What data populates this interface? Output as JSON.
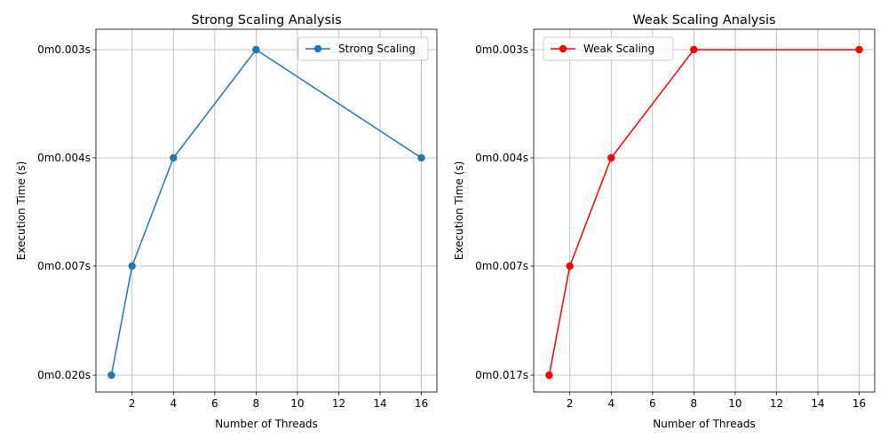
{
  "chart_data": [
    {
      "type": "line",
      "title": "Strong Scaling Analysis",
      "xlabel": "Number of Threads",
      "ylabel": "Execution Time (s)",
      "x": [
        1,
        2,
        4,
        8,
        16
      ],
      "y_categories": [
        "0m0.020s",
        "0m0.007s",
        "0m0.004s",
        "0m0.003s"
      ],
      "series": [
        {
          "name": "Strong Scaling",
          "color": "#1f77b4",
          "values": [
            "0m0.020s",
            "0m0.007s",
            "0m0.004s",
            "0m0.003s",
            "0m0.004s"
          ]
        }
      ],
      "xticks": [
        2,
        4,
        6,
        8,
        10,
        12,
        14,
        16
      ],
      "xlim": [
        0.25,
        16.75
      ],
      "grid": true,
      "legend_position": "top-right",
      "marker": "circle"
    },
    {
      "type": "line",
      "title": "Weak Scaling Analysis",
      "xlabel": "Number of Threads",
      "ylabel": "Execution Time (s)",
      "x": [
        1,
        2,
        4,
        8,
        16
      ],
      "y_categories": [
        "0m0.017s",
        "0m0.007s",
        "0m0.004s",
        "0m0.003s"
      ],
      "series": [
        {
          "name": "Weak Scaling",
          "color": "#ff0000",
          "values": [
            "0m0.017s",
            "0m0.007s",
            "0m0.004s",
            "0m0.003s",
            "0m0.003s"
          ]
        }
      ],
      "xticks": [
        2,
        4,
        6,
        8,
        10,
        12,
        14,
        16
      ],
      "xlim": [
        0.25,
        16.75
      ],
      "grid": true,
      "legend_position": "top-left",
      "marker": "circle"
    }
  ]
}
